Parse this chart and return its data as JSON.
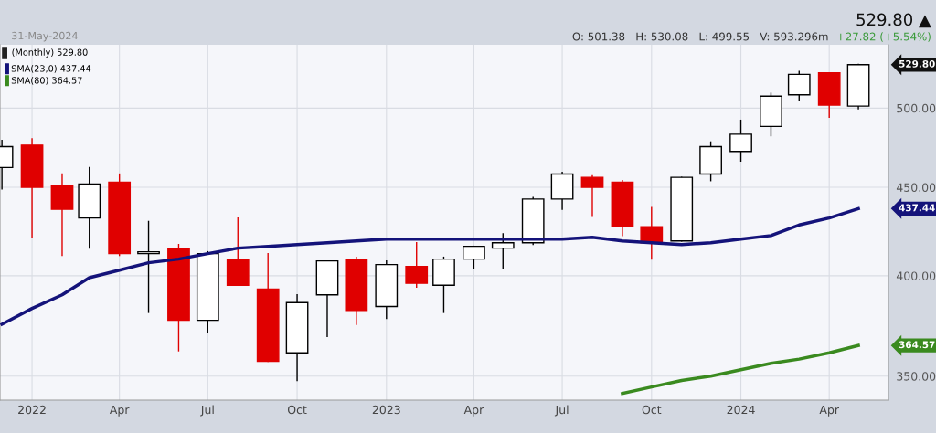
{
  "chart_data": {
    "type": "candlestick",
    "subtitle": "31-May-2024",
    "x": [
      "2021-12",
      "2022-01",
      "2022-02",
      "2022-03",
      "2022-04",
      "2022-05",
      "2022-06",
      "2022-07",
      "2022-08",
      "2022-09",
      "2022-10",
      "2022-11",
      "2022-12",
      "2023-01",
      "2023-02",
      "2023-03",
      "2023-04",
      "2023-05",
      "2023-06",
      "2023-07",
      "2023-08",
      "2023-09",
      "2023-10",
      "2023-11",
      "2023-12",
      "2024-01",
      "2024-02",
      "2024-03",
      "2024-04",
      "2024-05"
    ],
    "series": [
      {
        "ohlc": [
          [
            462,
            479,
            449,
            475
          ],
          [
            476,
            480,
            421,
            450
          ],
          [
            451,
            458,
            411,
            437
          ],
          [
            432,
            462,
            415,
            452
          ],
          [
            453,
            458,
            411,
            412
          ],
          [
            412,
            430,
            381,
            413
          ],
          [
            415,
            417,
            362,
            377
          ],
          [
            377,
            413,
            371,
            412
          ],
          [
            409,
            432,
            395,
            395
          ],
          [
            393,
            412,
            357,
            357
          ],
          [
            361,
            390,
            348,
            386
          ],
          [
            390,
            408,
            369,
            408
          ],
          [
            409,
            410,
            375,
            382
          ],
          [
            384,
            408,
            378,
            406
          ],
          [
            405,
            418,
            394,
            396
          ],
          [
            395,
            410,
            381,
            409
          ],
          [
            409,
            416,
            404,
            416
          ],
          [
            415,
            423,
            404,
            418
          ],
          [
            418,
            444,
            417,
            443
          ],
          [
            443,
            459,
            437,
            458
          ],
          [
            456,
            457,
            433,
            450
          ],
          [
            453,
            454,
            422,
            427
          ],
          [
            427,
            438,
            409,
            418
          ],
          [
            419,
            456,
            419,
            456
          ],
          [
            458,
            478,
            454,
            475
          ],
          [
            472,
            492,
            466,
            483
          ],
          [
            488,
            510,
            482,
            508
          ],
          [
            509,
            525,
            505,
            523
          ],
          [
            524,
            524,
            494,
            502
          ],
          [
            501.38,
            530.08,
            499.55,
            529.8
          ]
        ],
        "colors": [
          "#ffffff",
          "#e00000",
          "#e00000",
          "#ffffff",
          "#e00000",
          "#ffffff",
          "#e00000",
          "#ffffff",
          "#e00000",
          "#e00000",
          "#ffffff",
          "#ffffff",
          "#e00000",
          "#ffffff",
          "#e00000",
          "#ffffff",
          "#ffffff",
          "#ffffff",
          "#ffffff",
          "#ffffff",
          "#e00000",
          "#e00000",
          "#e00000",
          "#ffffff",
          "#ffffff",
          "#ffffff",
          "#ffffff",
          "#ffffff",
          "#e00000",
          "#ffffff"
        ]
      },
      {
        "type": "line",
        "name": "SMA(23,0) 437.44",
        "color": "#14137a",
        "values": [
          375,
          383,
          390,
          399,
          403,
          407,
          409,
          412,
          415,
          416,
          417,
          418,
          419,
          420,
          420,
          420,
          420,
          420,
          420,
          420,
          421,
          419,
          418,
          417,
          418,
          420,
          422,
          428,
          432,
          437.44
        ]
      },
      {
        "type": "line",
        "name": "SMA(80) 364.57",
        "color": "#3a8a1f",
        "x": [
          "2023-09",
          "2023-10",
          "2023-11",
          "2023-12",
          "2024-01",
          "2024-02",
          "2024-03",
          "2024-04",
          "2024-05"
        ],
        "values": [
          342,
          345,
          348,
          350,
          353,
          356,
          358,
          361,
          364.57
        ]
      }
    ],
    "log": true,
    "xlim": [
      "2021-11-29",
      "2024-06-01"
    ],
    "xticks": [
      {
        "value": "2022-01",
        "label": "2022"
      },
      {
        "value": "2022-04",
        "label": "Apr"
      },
      {
        "value": "2022-07",
        "label": "Jul"
      },
      {
        "value": "2022-10",
        "label": "Oct"
      },
      {
        "value": "2023-01",
        "label": "2023"
      },
      {
        "value": "2023-04",
        "label": "Apr"
      },
      {
        "value": "2023-07",
        "label": "Jul"
      },
      {
        "value": "2023-10",
        "label": "Oct"
      },
      {
        "value": "2024-01",
        "label": "2024"
      },
      {
        "value": "2024-04",
        "label": "Apr"
      }
    ],
    "ylim": [
      339,
      544
    ],
    "yticks": [
      {
        "value": 350,
        "label": "350.00"
      },
      {
        "value": 400,
        "label": "400.00"
      },
      {
        "value": 450,
        "label": "450.00"
      },
      {
        "value": 500,
        "label": "500.00"
      }
    ],
    "grid": true,
    "legend": "top left",
    "annotations": [
      "529.80 ▲",
      "O: 501.38   H: 530.08   L: 499.55   V: 593.296m",
      "+27.82 (+5.54%)",
      "(Monthly) 529.80",
      "529.80",
      "437.44",
      "364.57"
    ]
  }
}
